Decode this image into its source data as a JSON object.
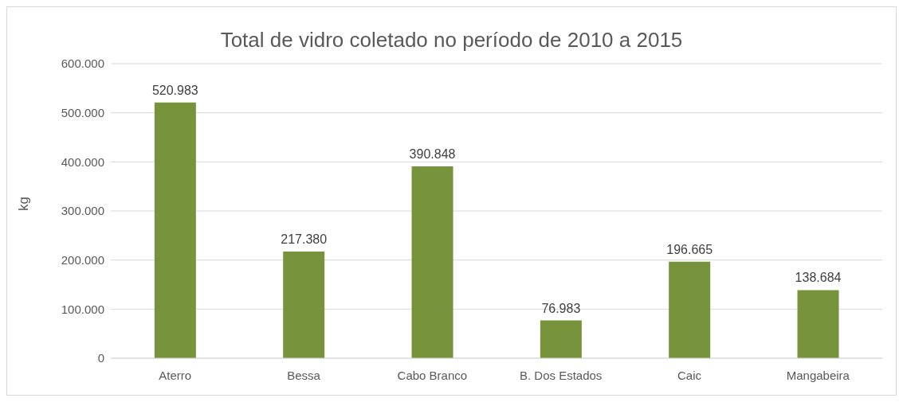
{
  "chart_data": {
    "type": "bar",
    "title": "Total de vidro coletado no período de 2010 a 2015",
    "ylabel": "kg",
    "categories": [
      "Aterro",
      "Bessa",
      "Cabo Branco",
      "B. Dos Estados",
      "Caic",
      "Mangabeira"
    ],
    "values": [
      520983,
      217380,
      390848,
      76983,
      196665,
      138684
    ],
    "value_labels": [
      "520.983",
      "217.380",
      "390.848",
      "76.983",
      "196.665",
      "138.684"
    ],
    "color": "#77933c",
    "ylim": [
      0,
      600000
    ],
    "yticks": [
      {
        "value": 0,
        "label": "0"
      },
      {
        "value": 100000,
        "label": "100.000"
      },
      {
        "value": 200000,
        "label": "200.000"
      },
      {
        "value": 300000,
        "label": "300.000"
      },
      {
        "value": 400000,
        "label": "400.000"
      },
      {
        "value": 500000,
        "label": "500.000"
      },
      {
        "value": 600000,
        "label": "600.000"
      }
    ],
    "grid": "y"
  }
}
